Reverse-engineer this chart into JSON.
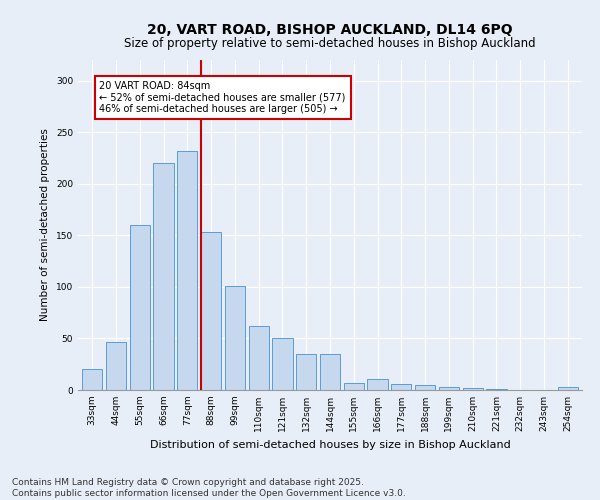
{
  "title": "20, VART ROAD, BISHOP AUCKLAND, DL14 6PQ",
  "subtitle": "Size of property relative to semi-detached houses in Bishop Auckland",
  "xlabel": "Distribution of semi-detached houses by size in Bishop Auckland",
  "ylabel": "Number of semi-detached properties",
  "categories": [
    "33sqm",
    "44sqm",
    "55sqm",
    "66sqm",
    "77sqm",
    "88sqm",
    "99sqm",
    "110sqm",
    "121sqm",
    "132sqm",
    "144sqm",
    "155sqm",
    "166sqm",
    "177sqm",
    "188sqm",
    "199sqm",
    "210sqm",
    "221sqm",
    "232sqm",
    "243sqm",
    "254sqm"
  ],
  "values": [
    20,
    47,
    160,
    220,
    232,
    153,
    101,
    62,
    50,
    35,
    35,
    7,
    11,
    6,
    5,
    3,
    2,
    1,
    0,
    0,
    3
  ],
  "bar_color": "#c5d8ed",
  "bar_edge_color": "#5b9bd5",
  "vline_color": "#cc0000",
  "annotation_text": "20 VART ROAD: 84sqm\n← 52% of semi-detached houses are smaller (577)\n46% of semi-detached houses are larger (505) →",
  "annotation_box_facecolor": "#ffffff",
  "annotation_box_edgecolor": "#cc0000",
  "ylim": [
    0,
    320
  ],
  "yticks": [
    0,
    50,
    100,
    150,
    200,
    250,
    300
  ],
  "footer_line1": "Contains HM Land Registry data © Crown copyright and database right 2025.",
  "footer_line2": "Contains public sector information licensed under the Open Government Licence v3.0.",
  "bg_color": "#e8eef7",
  "title_fontsize": 10,
  "subtitle_fontsize": 8.5,
  "ylabel_fontsize": 7.5,
  "xlabel_fontsize": 8,
  "tick_fontsize": 6.5,
  "annotation_fontsize": 7,
  "footer_fontsize": 6.5,
  "vline_bar_index": 4.575
}
